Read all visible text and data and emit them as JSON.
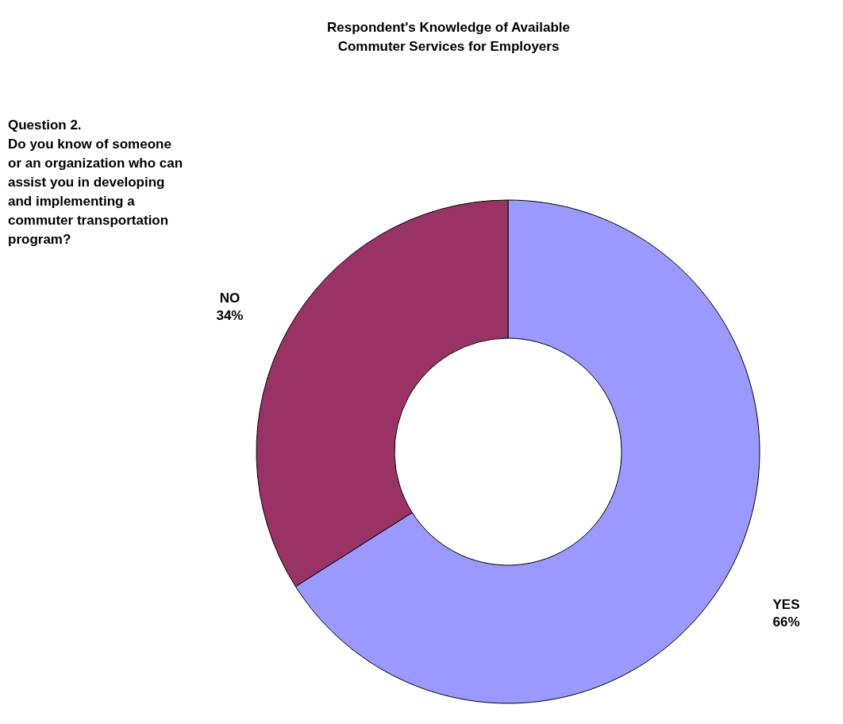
{
  "chart_data": {
    "type": "donut",
    "title": "Respondent's Knowledge of Available\nCommuter Services for Employers",
    "annotations": [
      "Question 2.\nDo you know of someone\nor an organization who can\nassist you in developing\nand implementing a\ncommuter transportation\nprogram?"
    ],
    "categories": [
      "YES",
      "NO"
    ],
    "values": [
      66,
      34
    ],
    "colors": [
      "#9999ff",
      "#993366"
    ],
    "value_labels": [
      "66%",
      "34%"
    ]
  }
}
